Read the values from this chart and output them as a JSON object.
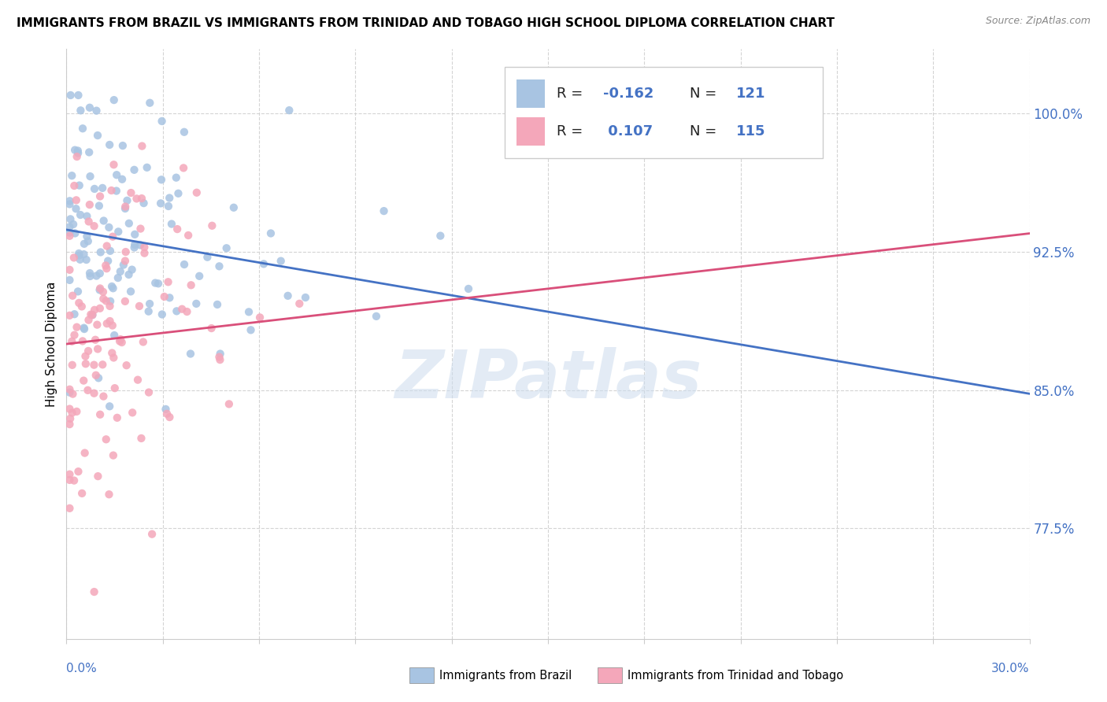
{
  "title": "IMMIGRANTS FROM BRAZIL VS IMMIGRANTS FROM TRINIDAD AND TOBAGO HIGH SCHOOL DIPLOMA CORRELATION CHART",
  "source": "Source: ZipAtlas.com",
  "ylabel": "High School Diploma",
  "ytick_labels": [
    "100.0%",
    "92.5%",
    "85.0%",
    "77.5%"
  ],
  "ytick_values": [
    1.0,
    0.925,
    0.85,
    0.775
  ],
  "xmin": 0.0,
  "xmax": 0.3,
  "ymin": 0.715,
  "ymax": 1.035,
  "brazil_color": "#a8c4e2",
  "trinidad_color": "#f4a7ba",
  "brazil_line_color": "#4472c4",
  "trinidad_line_color": "#d94f7a",
  "brazil_R": -0.162,
  "brazil_N": 121,
  "trinidad_R": 0.107,
  "trinidad_N": 115,
  "watermark": "ZIPatlas",
  "legend_label_brazil": "Immigrants from Brazil",
  "legend_label_trinidad": "Immigrants from Trinidad and Tobago",
  "brazil_line_y0": 0.937,
  "brazil_line_y1": 0.848,
  "trinidad_line_y0": 0.875,
  "trinidad_line_y1": 0.935
}
